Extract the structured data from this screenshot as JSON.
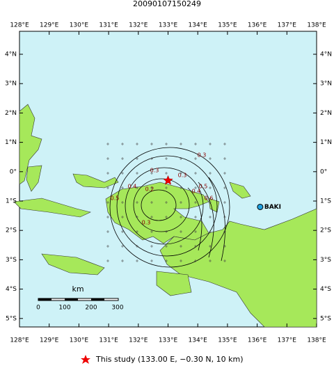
{
  "map": {
    "title": "20090107150249",
    "lon_ticks": [
      {
        "value": 128,
        "label": "128°E"
      },
      {
        "value": 129,
        "label": "129°E"
      },
      {
        "value": 130,
        "label": "130°E"
      },
      {
        "value": 131,
        "label": "131°E"
      },
      {
        "value": 132,
        "label": "132°E"
      },
      {
        "value": 133,
        "label": "133°E"
      },
      {
        "value": 134,
        "label": "134°E"
      },
      {
        "value": 135,
        "label": "135°E"
      },
      {
        "value": 136,
        "label": "136°E"
      },
      {
        "value": 137,
        "label": "137°E"
      },
      {
        "value": 138,
        "label": "138°E"
      }
    ],
    "lat_ticks": [
      {
        "value": 4,
        "label": "4°N"
      },
      {
        "value": 3,
        "label": "3°N"
      },
      {
        "value": 2,
        "label": "2°N"
      },
      {
        "value": 1,
        "label": "1°N"
      },
      {
        "value": 0,
        "label": "0°"
      },
      {
        "value": -1,
        "label": "1°S"
      },
      {
        "value": -2,
        "label": "2°S"
      },
      {
        "value": -3,
        "label": "3°S"
      },
      {
        "value": -4,
        "label": "4°S"
      },
      {
        "value": -5,
        "label": "5°S"
      }
    ],
    "station": {
      "name": "BAKI",
      "lon": 136.1,
      "lat": -1.2
    },
    "epicenter": {
      "lon": 133,
      "lat": -0.3
    },
    "contour_labels": [
      "0.3",
      "0.3",
      "0.3",
      "0.4",
      "0.5",
      "0.2",
      "0.3",
      "0.4",
      "0.5",
      "0.6"
    ],
    "scale_bar": {
      "title": "km",
      "labels": [
        "0",
        "100",
        "200",
        "300"
      ]
    },
    "legend": "This study (133.00 E, −0.30 N, 10 km)"
  }
}
